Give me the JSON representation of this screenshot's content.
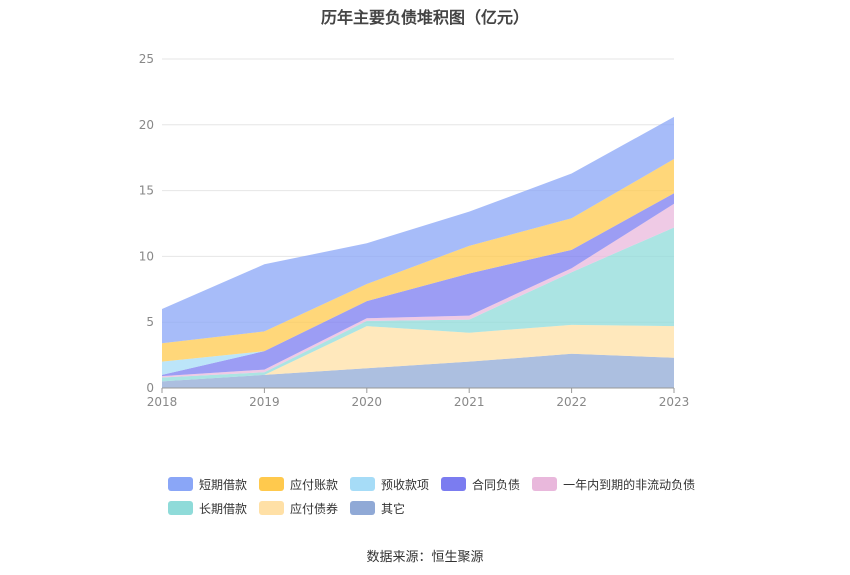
{
  "chart_data": {
    "type": "area",
    "stacked": true,
    "title": "历年主要负债堆积图（亿元）",
    "x": [
      "2018",
      "2019",
      "2020",
      "2021",
      "2022",
      "2023"
    ],
    "ylim": [
      0,
      25
    ],
    "yticks": [
      "0",
      "5",
      "10",
      "15",
      "20",
      "25"
    ],
    "grid": true,
    "legend_position": "bottom",
    "series": [
      {
        "name": "其它",
        "color": "#90a9d6",
        "values": [
          0.5,
          1.0,
          1.5,
          2.0,
          2.6,
          2.3
        ]
      },
      {
        "name": "应付债券",
        "color": "#ffe0a6",
        "values": [
          0,
          0,
          3.2,
          2.2,
          2.2,
          2.4
        ]
      },
      {
        "name": "长期借款",
        "color": "#8fdbd9",
        "values": [
          0.3,
          0.2,
          0.4,
          1.0,
          4.0,
          7.5
        ]
      },
      {
        "name": "一年内到期的非流动负债",
        "color": "#e9b8dc",
        "values": [
          0.1,
          0.2,
          0.2,
          0.3,
          0.3,
          1.8
        ]
      },
      {
        "name": "合同负债",
        "color": "#7b7cf0",
        "values": [
          0.1,
          1.4,
          1.3,
          3.2,
          1.4,
          0.8
        ]
      },
      {
        "name": "预收款项",
        "color": "#a6dcf7",
        "values": [
          1.0,
          0,
          0,
          0,
          0,
          0
        ]
      },
      {
        "name": "应付账款",
        "color": "#ffc94d",
        "values": [
          1.4,
          1.5,
          1.3,
          2.1,
          2.4,
          2.6
        ]
      },
      {
        "name": "短期借款",
        "color": "#8aa6f7",
        "values": [
          2.6,
          5.1,
          3.1,
          2.6,
          3.4,
          3.2
        ]
      }
    ]
  },
  "legend": {
    "row1": [
      {
        "label": "短期借款",
        "color": "#8aa6f7"
      },
      {
        "label": "应付账款",
        "color": "#ffc94d"
      },
      {
        "label": "预收款项",
        "color": "#a6dcf7"
      },
      {
        "label": "合同负债",
        "color": "#7b7cf0"
      },
      {
        "label": "一年内到期的非流动负债",
        "color": "#e9b8dc"
      }
    ],
    "row2": [
      {
        "label": "长期借款",
        "color": "#8fdbd9"
      },
      {
        "label": "应付债券",
        "color": "#ffe0a6"
      },
      {
        "label": "其它",
        "color": "#90a9d6"
      }
    ]
  },
  "source": "数据来源：恒生聚源"
}
